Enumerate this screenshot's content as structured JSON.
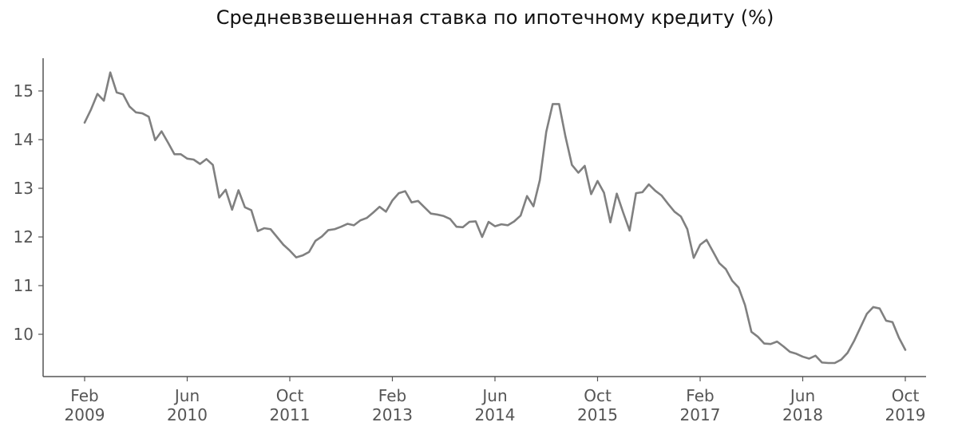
{
  "chart_data": {
    "type": "line",
    "title": "Средневзвешенная ставка по ипотечному кредиту (%)",
    "xlabel": "",
    "ylabel": "",
    "ylim": [
      9.1,
      15.7
    ],
    "yticks": [
      10,
      11,
      12,
      13,
      14,
      15
    ],
    "xticks": [
      {
        "index": 0,
        "line1": "Feb",
        "line2": "2009"
      },
      {
        "index": 16,
        "line1": "Jun",
        "line2": "2010"
      },
      {
        "index": 32,
        "line1": "Oct",
        "line2": "2011"
      },
      {
        "index": 48,
        "line1": "Feb",
        "line2": "2013"
      },
      {
        "index": 64,
        "line1": "Jun",
        "line2": "2014"
      },
      {
        "index": 80,
        "line1": "Oct",
        "line2": "2015"
      },
      {
        "index": 96,
        "line1": "Feb",
        "line2": "2017"
      },
      {
        "index": 112,
        "line1": "Jun",
        "line2": "2018"
      },
      {
        "index": 128,
        "line1": "Oct",
        "line2": "2019"
      }
    ],
    "grid": false,
    "line_color": "#808080",
    "series": [
      {
        "start": "2009-02",
        "values": [
          14.35,
          14.62,
          14.94,
          14.8,
          15.38,
          14.97,
          14.93,
          14.68,
          14.56,
          14.54,
          14.47,
          13.99,
          14.17,
          13.94,
          13.7,
          13.7,
          13.61,
          13.59,
          13.5,
          13.6,
          13.48,
          12.81,
          12.97,
          12.56,
          12.96,
          12.61,
          12.55,
          12.12,
          12.18,
          12.16,
          12.0,
          11.84,
          11.72,
          11.58,
          11.62,
          11.69,
          11.92,
          12.01,
          12.14,
          12.16,
          12.21,
          12.27,
          12.24,
          12.34,
          12.39,
          12.5,
          12.62,
          12.52,
          12.75,
          12.9,
          12.94,
          12.71,
          12.74,
          12.61,
          12.48,
          12.46,
          12.43,
          12.37,
          12.21,
          12.2,
          12.31,
          12.32,
          12.0,
          12.31,
          12.22,
          12.26,
          12.24,
          12.32,
          12.44,
          12.84,
          12.63,
          13.17,
          14.16,
          14.73,
          14.73,
          14.06,
          13.48,
          13.32,
          13.46,
          12.88,
          13.15,
          12.91,
          12.3,
          12.89,
          12.5,
          12.13,
          12.9,
          12.92,
          13.08,
          12.95,
          12.85,
          12.68,
          12.52,
          12.42,
          12.16,
          11.57,
          11.84,
          11.94,
          11.7,
          11.46,
          11.34,
          11.1,
          10.96,
          10.6,
          10.05,
          9.95,
          9.81,
          9.8,
          9.85,
          9.75,
          9.64,
          9.6,
          9.54,
          9.5,
          9.56,
          9.42,
          9.41,
          9.41,
          9.48,
          9.62,
          9.86,
          10.14,
          10.42,
          10.56,
          10.53,
          10.28,
          10.25,
          9.93,
          9.68
        ]
      }
    ]
  }
}
